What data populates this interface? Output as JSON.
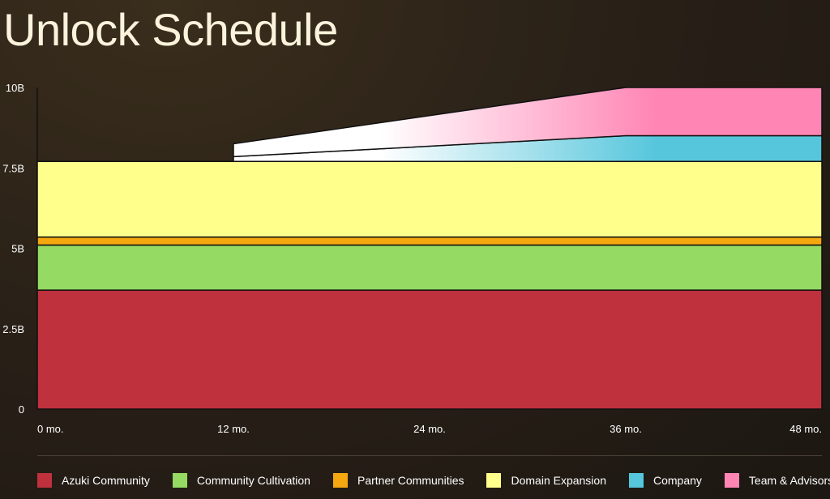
{
  "chart_data": {
    "type": "area",
    "title": "Unlock Schedule",
    "xlabel": "",
    "ylabel": "",
    "x_ticks": [
      "0 mo.",
      "12 mo.",
      "24 mo.",
      "36 mo.",
      "48 mo."
    ],
    "y_ticks": [
      "0",
      "2.5B",
      "5B",
      "7.5B",
      "10B"
    ],
    "ylim": [
      0,
      10000000000
    ],
    "xlim": [
      0,
      48
    ],
    "legend_position": "bottom",
    "series": [
      {
        "name": "Azuki Community",
        "color": "#bf313d",
        "x": [
          0,
          48
        ],
        "values": [
          3700000000,
          3700000000
        ]
      },
      {
        "name": "Community Cultivation",
        "color": "#95da62",
        "x": [
          0,
          48
        ],
        "values": [
          1400000000,
          1400000000
        ]
      },
      {
        "name": "Partner Communities",
        "color": "#f4a70f",
        "x": [
          0,
          48
        ],
        "values": [
          250000000,
          250000000
        ]
      },
      {
        "name": "Domain Expansion",
        "color": "#ffff8c",
        "x": [
          0,
          48
        ],
        "values": [
          2350000000,
          2350000000
        ]
      },
      {
        "name": "Company",
        "color": "#56c6dc",
        "x": [
          0,
          12,
          36,
          48
        ],
        "values": [
          0,
          150000000,
          800000000,
          800000000
        ]
      },
      {
        "name": "Team & Advisors",
        "color": "#ff85b4",
        "x": [
          0,
          12,
          36,
          48
        ],
        "values": [
          0,
          400000000,
          1500000000,
          1500000000
        ]
      }
    ]
  }
}
